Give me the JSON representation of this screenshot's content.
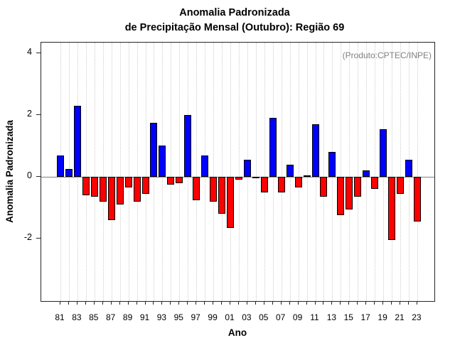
{
  "title": {
    "line1": "Anomalia Padronizada",
    "line2": "de Precipitação Mensal (Outubro): Região 69"
  },
  "annotation": "(Produto:CPTEC/INPE)",
  "colors": {
    "positive_bar": "#0000ff",
    "negative_bar": "#ff0000",
    "bar_border": "#000000",
    "zero_line": "#808080",
    "gridline": "#cdcdcd",
    "annotation_text": "#808080"
  },
  "chart_data": {
    "type": "bar",
    "title": "Anomalia Padronizada de Precipitação Mensal (Outubro): Região 69",
    "xlabel": "Ano",
    "ylabel": "Anomalia Padronizada",
    "x": [
      1981,
      1982,
      1983,
      1984,
      1985,
      1986,
      1987,
      1988,
      1989,
      1990,
      1991,
      1992,
      1993,
      1994,
      1995,
      1996,
      1997,
      1998,
      1999,
      2000,
      2001,
      2002,
      2003,
      2004,
      2005,
      2006,
      2007,
      2008,
      2009,
      2010,
      2011,
      2012,
      2013,
      2014,
      2015,
      2016,
      2017,
      2018,
      2019,
      2020,
      2021,
      2022,
      2023
    ],
    "values": [
      0.7,
      0.25,
      2.3,
      -0.6,
      -0.65,
      -0.8,
      -1.4,
      -0.9,
      -0.35,
      -0.8,
      -0.55,
      1.75,
      1.0,
      -0.25,
      -0.2,
      2.0,
      -0.75,
      0.7,
      -0.8,
      -1.2,
      -1.65,
      -0.1,
      0.55,
      -0.05,
      -0.5,
      1.9,
      -0.5,
      0.4,
      -0.35,
      0.05,
      1.7,
      -0.65,
      0.8,
      -1.25,
      -1.05,
      -0.65,
      0.2,
      -0.4,
      1.55,
      -2.05,
      -0.55,
      0.55,
      -1.45
    ],
    "x_tick_labels": [
      "81",
      "83",
      "85",
      "87",
      "89",
      "91",
      "93",
      "95",
      "97",
      "99",
      "01",
      "03",
      "05",
      "07",
      "09",
      "11",
      "13",
      "15",
      "17",
      "19",
      "21",
      "23"
    ],
    "y_ticks": [
      4,
      2,
      0,
      -2
    ],
    "ylim": [
      -4.0,
      4.35
    ],
    "grid": "vertical-dotted",
    "legend": "none"
  }
}
